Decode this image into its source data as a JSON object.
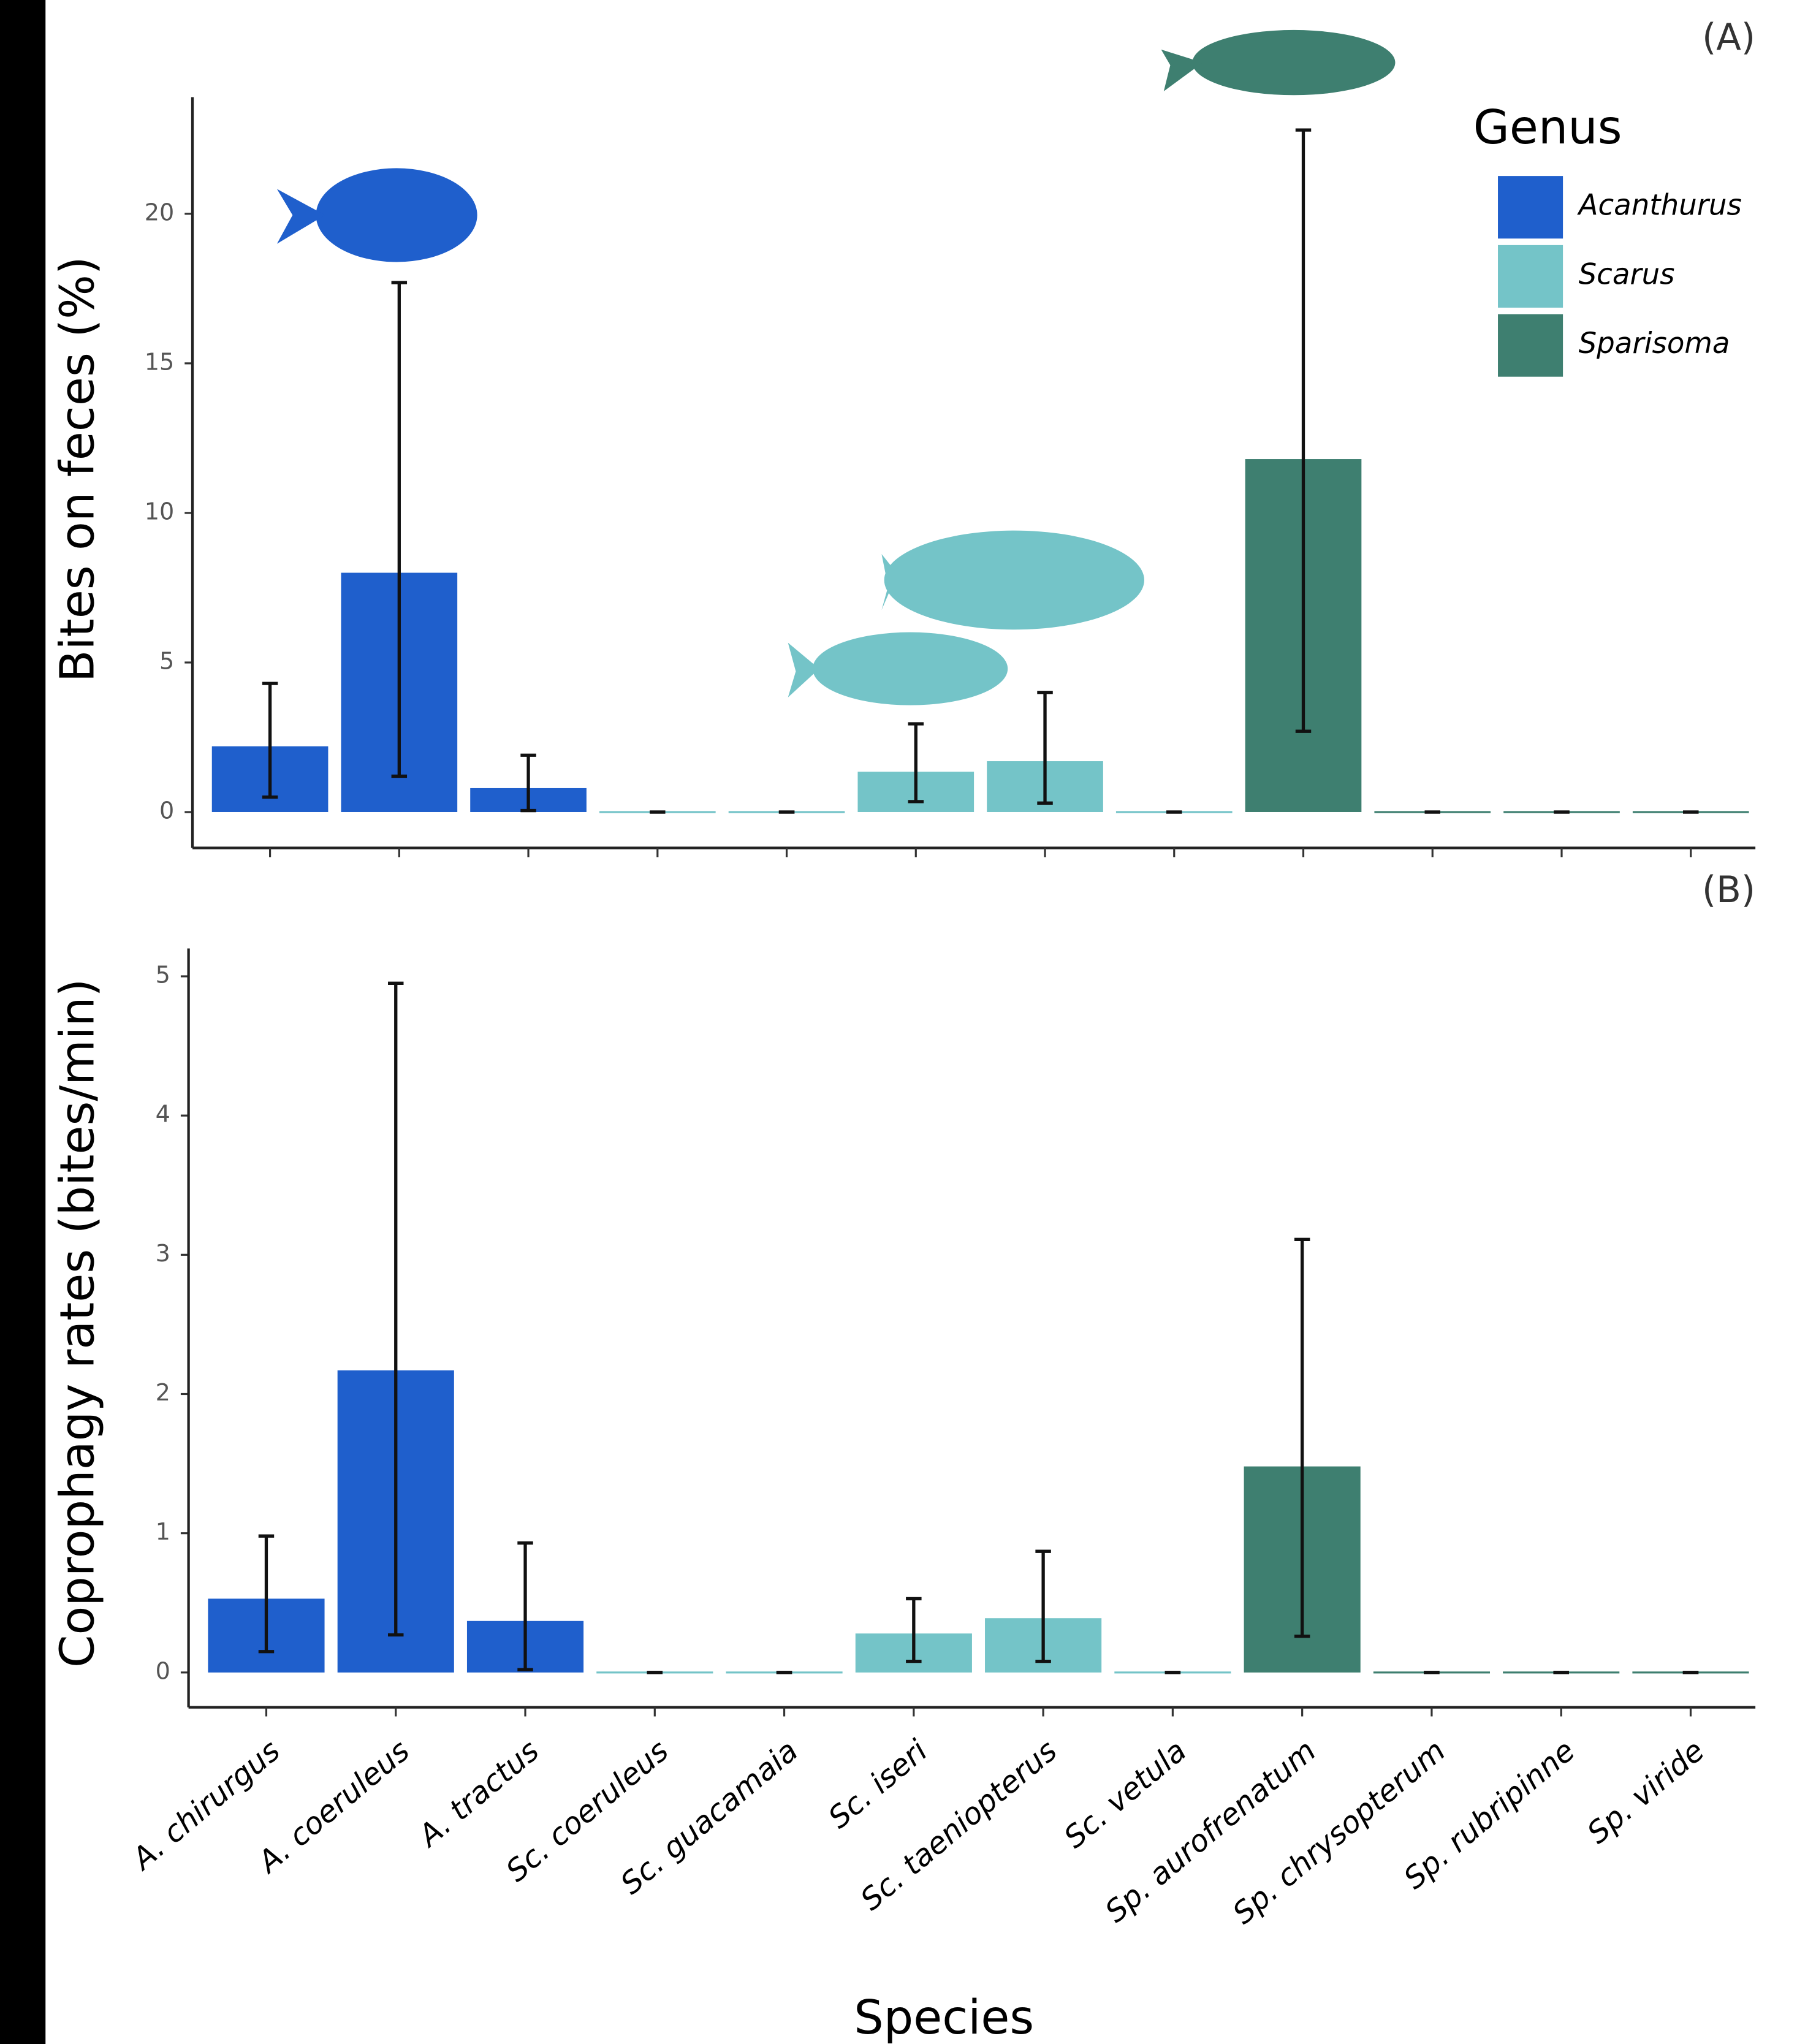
{
  "chart_data": [
    {
      "type": "bar",
      "panel_label": "(A)",
      "y_label": "Bites on feces (%)",
      "ylim": [
        -1.2,
        23.9
      ],
      "yticks": [
        0,
        5,
        10,
        15,
        20
      ],
      "legend_title": "Genus",
      "legend": "top-right",
      "series": [
        {
          "name": "Acanthurus",
          "color": "#1f5fcc",
          "values": [
            2.2,
            8.0,
            0.8,
            null,
            null,
            null,
            null,
            null,
            null,
            null,
            null,
            null
          ]
        },
        {
          "name": "Scarus",
          "color": "#74c4c8",
          "values": [
            null,
            null,
            null,
            0,
            0,
            1.35,
            1.7,
            0,
            null,
            null,
            null,
            null
          ]
        },
        {
          "name": "Sparisoma",
          "color": "#3e7f70",
          "values": [
            null,
            null,
            null,
            null,
            null,
            null,
            null,
            null,
            11.8,
            0,
            0,
            0
          ]
        }
      ],
      "ci_lower": [
        0.5,
        1.2,
        0.05,
        0,
        0,
        0.35,
        0.3,
        0,
        2.7,
        0,
        0,
        0
      ],
      "ci_upper": [
        4.3,
        17.7,
        1.9,
        0,
        0,
        2.95,
        4.0,
        0,
        22.8,
        0,
        0,
        0
      ]
    },
    {
      "type": "bar",
      "panel_label": "(B)",
      "y_label": "Coprophagy rates (bites/min)",
      "x_label": "Species",
      "ylim": [
        -0.25,
        5.2
      ],
      "yticks": [
        0,
        1,
        2,
        3,
        4,
        5
      ],
      "categories": [
        "A. chirurgus",
        "A. coeruleus",
        "A. tractus",
        "Sc. coeruleus",
        "Sc. guacamaia",
        "Sc. iseri",
        "Sc. taeniopterus",
        "Sc. vetula",
        "Sp. aurofrenatum",
        "Sp. chrysopterum",
        "Sp. rubripinne",
        "Sp. viride"
      ],
      "series": [
        {
          "name": "Acanthurus",
          "color": "#1f5fcc",
          "values": [
            0.53,
            2.17,
            0.37,
            null,
            null,
            null,
            null,
            null,
            null,
            null,
            null,
            null
          ]
        },
        {
          "name": "Scarus",
          "color": "#74c4c8",
          "values": [
            null,
            null,
            null,
            0,
            0,
            0.28,
            0.39,
            0,
            null,
            null,
            null,
            null
          ]
        },
        {
          "name": "Sparisoma",
          "color": "#3e7f70",
          "values": [
            null,
            null,
            null,
            null,
            null,
            null,
            null,
            null,
            1.48,
            0,
            0,
            0
          ]
        }
      ],
      "ci_lower": [
        0.15,
        0.27,
        0.02,
        0,
        0,
        0.08,
        0.08,
        0,
        0.26,
        0,
        0,
        0
      ],
      "ci_upper": [
        0.98,
        4.95,
        0.93,
        0,
        0,
        0.53,
        0.87,
        0,
        3.11,
        0,
        0,
        0
      ]
    }
  ]
}
